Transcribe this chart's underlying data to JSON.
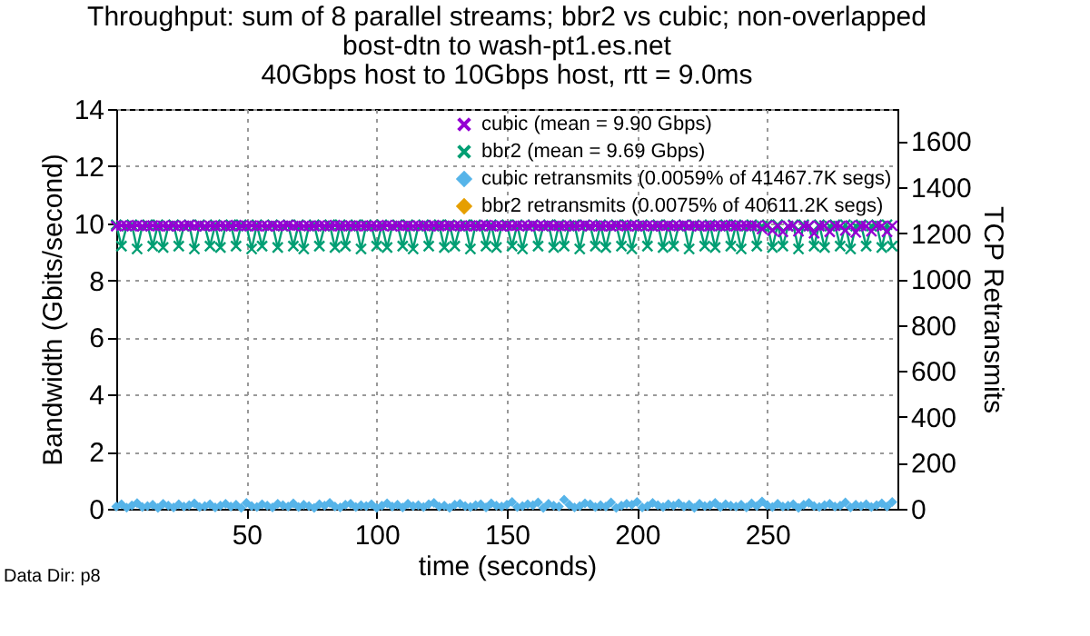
{
  "chart_data": {
    "type": "line",
    "title": [
      "Throughput: sum of 8 parallel streams; bbr2 vs cubic; non-overlapped",
      "bost-dtn to wash-pt1.es.net",
      "40Gbps host to 10Gbps host, rtt = 9.0ms"
    ],
    "xlabel": "time (seconds)",
    "ylabel": "Bandwidth (Gbits/second)",
    "y2label": "TCP Retransmits",
    "xlim": [
      0,
      300
    ],
    "xticks": [
      50,
      100,
      150,
      200,
      250
    ],
    "ylim": [
      0,
      14
    ],
    "yticks": [
      0,
      2,
      4,
      6,
      8,
      10,
      12,
      14
    ],
    "y2lim": [
      0,
      1740
    ],
    "y2ticks": [
      0,
      200,
      400,
      600,
      800,
      1000,
      1200,
      1400,
      1600
    ],
    "grid": true,
    "legend": "top right",
    "annotations": [
      "Data Dir: p8"
    ],
    "x": [
      0,
      2,
      4,
      6,
      8,
      10,
      12,
      14,
      16,
      18,
      20,
      22,
      24,
      26,
      28,
      30,
      32,
      34,
      36,
      38,
      40,
      42,
      44,
      46,
      48,
      50,
      52,
      54,
      56,
      58,
      60,
      62,
      64,
      66,
      68,
      70,
      72,
      74,
      76,
      78,
      80,
      82,
      84,
      86,
      88,
      90,
      92,
      94,
      96,
      98,
      100,
      102,
      104,
      106,
      108,
      110,
      112,
      114,
      116,
      118,
      120,
      122,
      124,
      126,
      128,
      130,
      132,
      134,
      136,
      138,
      140,
      142,
      144,
      146,
      148,
      150,
      152,
      154,
      156,
      158,
      160,
      162,
      164,
      166,
      168,
      170,
      172,
      174,
      176,
      178,
      180,
      182,
      184,
      186,
      188,
      190,
      192,
      194,
      196,
      198,
      200,
      202,
      204,
      206,
      208,
      210,
      212,
      214,
      216,
      218,
      220,
      222,
      224,
      226,
      228,
      230,
      232,
      234,
      236,
      238,
      240,
      242,
      244,
      246,
      248,
      250,
      252,
      254,
      256,
      258,
      260,
      262,
      264,
      266,
      268,
      270,
      272,
      274,
      276,
      278,
      280,
      282,
      284,
      286,
      288,
      290,
      292,
      294,
      296,
      298
    ],
    "series": [
      {
        "name": "cubic (mean = 9.90 Gbps)",
        "color": "#9400d3",
        "marker": "cross",
        "values": [
          9.9,
          9.92,
          9.91,
          9.9,
          9.93,
          9.9,
          9.91,
          9.92,
          9.9,
          9.91,
          9.9,
          9.92,
          9.9,
          9.91,
          9.93,
          9.9,
          9.92,
          9.9,
          9.91,
          9.9,
          9.92,
          9.91,
          9.9,
          9.93,
          9.9,
          9.91,
          9.92,
          9.9,
          9.91,
          9.9,
          9.92,
          9.9,
          9.91,
          9.93,
          9.9,
          9.92,
          9.9,
          9.91,
          9.9,
          9.92,
          9.91,
          9.9,
          9.93,
          9.9,
          9.91,
          9.92,
          9.9,
          9.91,
          9.9,
          9.92,
          9.9,
          9.91,
          9.93,
          9.9,
          9.92,
          9.9,
          9.91,
          9.9,
          9.92,
          9.91,
          9.9,
          9.93,
          9.9,
          9.91,
          9.92,
          9.9,
          9.91,
          9.9,
          9.92,
          9.9,
          9.91,
          9.93,
          9.9,
          9.92,
          9.9,
          9.91,
          9.9,
          9.92,
          9.91,
          9.9,
          9.93,
          9.9,
          9.91,
          9.92,
          9.9,
          9.91,
          9.9,
          9.92,
          9.9,
          9.91,
          9.93,
          9.9,
          9.92,
          9.9,
          9.91,
          9.9,
          9.92,
          9.91,
          9.9,
          9.93,
          9.9,
          9.91,
          9.92,
          9.9,
          9.91,
          9.9,
          9.92,
          9.9,
          9.91,
          9.93,
          9.9,
          9.92,
          9.9,
          9.91,
          9.9,
          9.92,
          9.91,
          9.9,
          9.93,
          9.9,
          9.91,
          9.92,
          9.9,
          9.91,
          9.8,
          9.92,
          9.75,
          9.91,
          9.7,
          9.9,
          9.92,
          9.72,
          9.9,
          9.91,
          9.65,
          9.9,
          9.92,
          9.7,
          9.91,
          9.9,
          9.75,
          9.92,
          9.68,
          9.91,
          9.9,
          9.72,
          9.92,
          9.9,
          9.7,
          9.91
        ]
      },
      {
        "name": "bbr2 (mean = 9.69 Gbps)",
        "color": "#009e73",
        "marker": "cross",
        "values": [
          9.95,
          9.2,
          9.9,
          9.95,
          9.1,
          9.9,
          9.95,
          9.2,
          9.95,
          9.15,
          9.9,
          9.95,
          9.2,
          9.9,
          9.95,
          9.1,
          9.95,
          9.9,
          9.2,
          9.95,
          9.15,
          9.9,
          9.95,
          9.2,
          9.95,
          9.9,
          9.1,
          9.95,
          9.2,
          9.9,
          9.95,
          9.15,
          9.9,
          9.95,
          9.2,
          9.95,
          9.1,
          9.9,
          9.95,
          9.2,
          9.9,
          9.95,
          9.15,
          9.95,
          9.2,
          9.9,
          9.95,
          9.1,
          9.95,
          9.9,
          9.2,
          9.95,
          9.15,
          9.9,
          9.95,
          9.2,
          9.95,
          9.1,
          9.9,
          9.95,
          9.2,
          9.9,
          9.95,
          9.15,
          9.95,
          9.2,
          9.9,
          9.95,
          9.1,
          9.95,
          9.9,
          9.2,
          9.95,
          9.15,
          9.9,
          9.95,
          9.2,
          9.95,
          9.1,
          9.9,
          9.95,
          9.2,
          9.9,
          9.95,
          9.15,
          9.95,
          9.2,
          9.9,
          9.95,
          9.1,
          9.95,
          9.9,
          9.2,
          9.95,
          9.15,
          9.9,
          9.95,
          9.2,
          9.95,
          9.1,
          9.9,
          9.95,
          9.2,
          9.9,
          9.95,
          9.15,
          9.95,
          9.2,
          9.9,
          9.95,
          9.1,
          9.95,
          9.9,
          9.2,
          9.95,
          9.15,
          9.9,
          9.95,
          9.2,
          9.95,
          9.1,
          9.9,
          9.95,
          9.2,
          9.9,
          9.95,
          9.15,
          9.95,
          9.2,
          9.9,
          9.95,
          9.1,
          9.95,
          9.9,
          9.2,
          9.95,
          9.15,
          9.9,
          9.95,
          9.2,
          9.95,
          9.1,
          9.9,
          9.95,
          9.2,
          9.9,
          9.95,
          9.15,
          9.95,
          9.2
        ]
      },
      {
        "name": "cubic retransmits (0.0059% of 41467.7K segs)",
        "color": "#56b4e9",
        "type": "scatter",
        "marker": "diamond",
        "axis": "y2",
        "values": [
          10,
          20,
          5,
          15,
          25,
          8,
          12,
          18,
          4,
          22,
          14,
          6,
          20,
          10,
          16,
          24,
          8,
          12,
          20,
          6,
          14,
          22,
          10,
          18,
          4,
          26,
          12,
          8,
          20,
          14,
          6,
          22,
          16,
          10,
          24,
          8,
          18,
          12,
          4,
          20,
          14,
          26,
          10,
          6,
          18,
          22,
          8,
          16,
          12,
          20,
          4,
          14,
          24,
          10,
          18,
          6,
          22,
          12,
          16,
          8,
          20,
          26,
          10,
          14,
          4,
          18,
          22,
          12,
          8,
          16,
          20,
          6,
          24,
          14,
          10,
          18,
          30,
          8,
          12,
          20,
          16,
          28,
          4,
          22,
          14,
          10,
          40,
          18,
          6,
          12,
          24,
          20,
          8,
          16,
          10,
          28,
          4,
          14,
          22,
          18,
          30,
          6,
          12,
          26,
          16,
          8,
          20,
          14,
          24,
          10,
          18,
          4,
          22,
          12,
          16,
          26,
          8,
          20,
          14,
          10,
          18,
          6,
          24,
          12,
          32,
          16,
          8,
          22,
          10,
          14,
          20,
          4,
          18,
          26,
          12,
          8,
          16,
          22,
          10,
          14,
          28,
          6,
          18,
          12,
          20,
          8,
          16,
          24,
          10,
          30
        ]
      },
      {
        "name": "bbr2 retransmits (0.0075% of 40611.2K segs)",
        "color": "#e69f00",
        "type": "scatter",
        "marker": "diamond",
        "axis": "y2",
        "values": [
          null,
          null,
          null,
          null,
          null,
          null,
          null,
          null,
          null,
          null,
          null,
          null,
          null,
          null,
          null,
          null,
          null,
          null,
          null,
          null,
          null,
          null,
          null,
          null,
          null,
          null,
          null,
          null,
          null,
          null,
          null,
          null,
          null,
          null,
          null,
          null,
          null,
          null,
          null,
          null,
          null,
          null,
          null,
          null,
          null,
          null,
          null,
          null,
          null,
          null,
          null,
          null,
          null,
          null,
          null,
          null,
          null,
          null,
          null,
          null,
          null,
          null,
          null,
          null,
          null,
          null,
          null,
          null,
          null,
          null,
          null,
          null,
          null,
          null,
          null,
          null,
          null,
          null,
          null,
          null,
          null,
          null,
          null,
          null,
          null,
          null,
          null,
          null,
          null,
          null,
          null,
          null,
          null,
          null,
          null,
          null,
          null,
          null,
          null,
          null,
          null,
          null,
          null,
          null,
          null,
          null,
          null,
          null,
          null,
          null,
          null,
          null,
          null,
          null,
          null,
          null,
          null,
          null,
          null,
          null,
          null,
          null,
          null,
          null,
          null,
          null,
          null,
          null,
          null,
          null,
          null,
          null,
          null,
          null,
          null,
          null,
          null,
          null,
          null,
          null,
          null,
          null,
          null,
          null,
          null,
          null,
          null,
          null,
          null,
          null
        ]
      }
    ]
  }
}
